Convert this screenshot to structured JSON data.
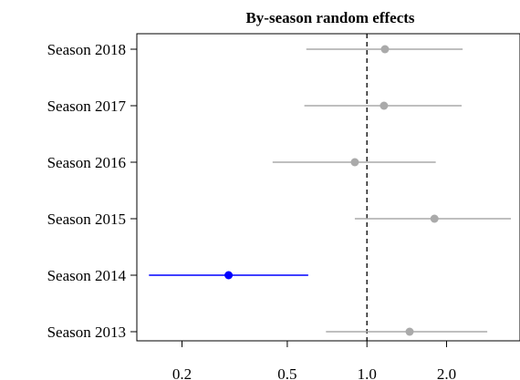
{
  "chart_data": {
    "type": "forest",
    "title": "By-season random effects",
    "xlabel": "",
    "ylabel": "",
    "x_scale": "log",
    "xlim": [
      0.135,
      3.5
    ],
    "x_ticks": [
      0.2,
      0.5,
      1.0,
      2.0
    ],
    "x_tick_labels": [
      "0.2",
      "0.5",
      "1.0",
      "2.0"
    ],
    "reference_line": 1.0,
    "grid": false,
    "legend": "none",
    "categories": [
      "Season 2018",
      "Season 2017",
      "Season 2016",
      "Season 2015",
      "Season 2014",
      "Season 2013"
    ],
    "series": [
      {
        "points": [
          {
            "label": "Season 2018",
            "estimate": 1.17,
            "lower": 0.59,
            "upper": 2.3,
            "highlight": false
          },
          {
            "label": "Season 2017",
            "estimate": 1.16,
            "lower": 0.58,
            "upper": 2.28,
            "highlight": false
          },
          {
            "label": "Season 2016",
            "estimate": 0.9,
            "lower": 0.44,
            "upper": 1.82,
            "highlight": false
          },
          {
            "label": "Season 2015",
            "estimate": 1.8,
            "lower": 0.9,
            "upper": 3.5,
            "highlight": false
          },
          {
            "label": "Season 2014",
            "estimate": 0.3,
            "lower": 0.15,
            "upper": 0.6,
            "highlight": true
          },
          {
            "label": "Season 2013",
            "estimate": 1.45,
            "lower": 0.7,
            "upper": 2.85,
            "highlight": false
          }
        ]
      }
    ],
    "colors": {
      "default": "#aaaaaa",
      "highlight": "#0000ff",
      "reference": "#000000"
    }
  }
}
